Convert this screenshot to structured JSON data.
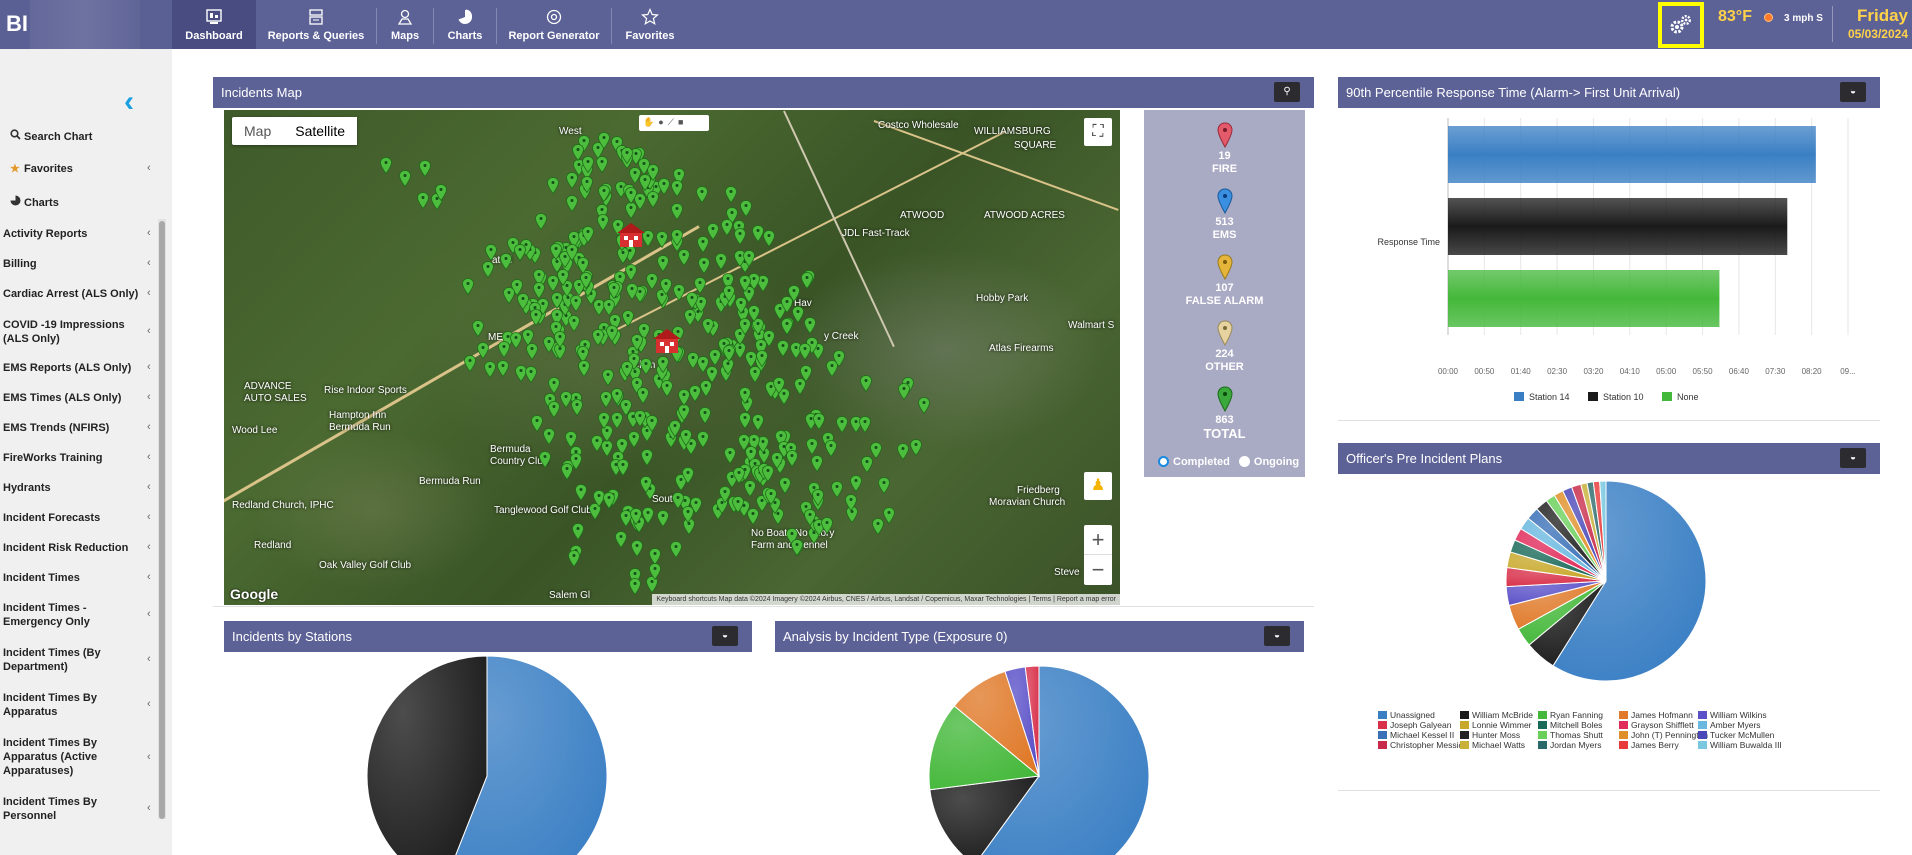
{
  "app": {
    "brand": "BI"
  },
  "nav": [
    {
      "label": "Dashboard",
      "icon": "dashboard-icon"
    },
    {
      "label": "Reports & Queries",
      "icon": "reports-icon"
    },
    {
      "label": "Maps",
      "icon": "maps-icon"
    },
    {
      "label": "Charts",
      "icon": "charts-icon"
    },
    {
      "label": "Report Generator",
      "icon": "report-generator-icon"
    },
    {
      "label": "Favorites",
      "icon": "star-icon"
    }
  ],
  "weather": {
    "temp": "83°F",
    "wind": "3 mph S",
    "day": "Friday",
    "date": "05/03/2024"
  },
  "sidebar": {
    "top": [
      {
        "label": "Search Chart",
        "icon": "search-icon"
      },
      {
        "label": "Favorites",
        "icon": "star-icon"
      },
      {
        "label": "Charts",
        "icon": "pie-icon"
      }
    ],
    "items": [
      "Activity Reports",
      "Billing",
      "Cardiac Arrest (ALS Only)",
      "COVID -19 Impressions (ALS Only)",
      "EMS Reports (ALS Only)",
      "EMS Times (ALS Only)",
      "EMS Trends (NFIRS)",
      "FireWorks Training",
      "Hydrants",
      "Incident Forecasts",
      "Incident Risk Reduction",
      "Incident Times",
      "Incident Times - Emergency Only",
      "Incident Times (By Department)",
      "Incident Times By Apparatus",
      "Incident Times By Apparatus (Active Apparatuses)",
      "Incident Times By Personnel"
    ]
  },
  "panels": {
    "map": "Incidents Map",
    "response": "90th Percentile Response Time (Alarm-> First Unit Arrival)",
    "preplans": "Officer's Pre Incident Plans",
    "stations": "Incidents by Stations",
    "types": "Analysis by Incident Type (Exposure 0)"
  },
  "map": {
    "type_map": "Map",
    "type_satellite": "Satellite",
    "google": "Google",
    "attribution": "Keyboard shortcuts   Map data ©2024 Imagery ©2024 Airbus, CNES / Airbus, Landsat / Copernicus, Maxar Technologies  |  Terms  |  Report a map error",
    "zoom_in": "+",
    "zoom_out": "−",
    "places": [
      "West",
      "Costco Wholesale",
      "WILLIAMSBURG",
      "SQUARE",
      "ATWOOD",
      "ATWOOD ACRES",
      "JDL Fast-Track",
      "Hobby Park",
      "Walmart S",
      "Atlas Firearms",
      "ME",
      "Clem",
      "Hav",
      "y Creek",
      "ADVANCE",
      "AUTO SALES",
      "Rise Indoor Sports",
      "Hampton Inn",
      "Bermuda Run",
      "Wood Lee",
      "Bermuda",
      "Country Club",
      "Bermuda Run",
      "Redland Church, IPHC",
      "Tanglewood Golf Club",
      "Redland",
      "Oak Valley Golf Club",
      "South",
      "No Boats No Glory",
      "Farm and Kennel",
      "Friedberg",
      "Moravian Church",
      "Steve",
      "Salem Gl",
      "at Pl"
    ]
  },
  "legend": {
    "items": [
      {
        "count": "19",
        "label": "FIRE",
        "color": "#e35a6a"
      },
      {
        "count": "513",
        "label": "EMS",
        "color": "#3a8fe0"
      },
      {
        "count": "107",
        "label": "FALSE ALARM",
        "color": "#e4b53a"
      },
      {
        "count": "224",
        "label": "OTHER",
        "color": "#e6d3a0"
      },
      {
        "count": "863",
        "label": "TOTAL",
        "color": "#3aa83a"
      }
    ],
    "completed": "Completed",
    "ongoing": "Ongoing"
  },
  "response_chart": {
    "category": "Response Time",
    "ticks": [
      "00:00",
      "00:50",
      "01:40",
      "02:30",
      "03:20",
      "04:10",
      "05:00",
      "05:50",
      "06:40",
      "07:30",
      "08:20",
      "09..."
    ],
    "series": [
      {
        "name": "Station 14",
        "value_seconds": 515,
        "color": "#3a7fc4"
      },
      {
        "name": "Station 10",
        "value_seconds": 475,
        "color": "#1a1a1a"
      },
      {
        "name": "None",
        "value_seconds": 380,
        "color": "#44b83a"
      }
    ],
    "xmax_seconds": 560
  },
  "preplans_chart": {
    "legend": [
      {
        "name": "Unassigned",
        "color": "#3a7fc4"
      },
      {
        "name": "William McBride",
        "color": "#1a1a1a"
      },
      {
        "name": "Ryan Fanning",
        "color": "#44b83a"
      },
      {
        "name": "James Hofmann",
        "color": "#e07a2a"
      },
      {
        "name": "William Wilkins",
        "color": "#5a50c8"
      },
      {
        "name": "Joseph Galyean",
        "color": "#d8304a"
      },
      {
        "name": "Lonnie Wimmer",
        "color": "#c8a82a"
      },
      {
        "name": "Mitchell Boles",
        "color": "#1a6a5a"
      },
      {
        "name": "Grayson Shifflett",
        "color": "#e02a5a"
      },
      {
        "name": "Amber Myers",
        "color": "#6ab8e0"
      },
      {
        "name": "Michael Kessel II",
        "color": "#3a70b8"
      },
      {
        "name": "Hunter Moss",
        "color": "#222222"
      },
      {
        "name": "Thomas Shutt",
        "color": "#6ad05a"
      },
      {
        "name": "John (T) Pennington",
        "color": "#e0902a"
      },
      {
        "name": "Tucker McMullen",
        "color": "#4a48b8"
      },
      {
        "name": "Christopher Messick",
        "color": "#c82a4a"
      },
      {
        "name": "Michael Watts",
        "color": "#c8b03a"
      },
      {
        "name": "Jordan Myers",
        "color": "#2a6a6a"
      },
      {
        "name": "James Berry",
        "color": "#e83a3a"
      },
      {
        "name": "William Buwalda III",
        "color": "#7ac8e0"
      }
    ],
    "values": [
      58,
      5,
      3,
      4,
      3,
      3,
      2.5,
      2,
      2,
      2,
      2,
      2,
      1.5,
      1.5,
      1.5,
      1.5,
      1,
      1,
      1,
      1
    ]
  },
  "stations_chart": {
    "values": [
      56,
      44
    ],
    "colors": [
      "#3a7fc4",
      "#1a1a1a"
    ]
  },
  "types_chart": {
    "values": [
      60,
      13,
      13,
      9,
      3,
      2
    ],
    "colors": [
      "#3a7fc4",
      "#1a1a1a",
      "#44b83a",
      "#e07a2a",
      "#5a50c8",
      "#d8304a"
    ]
  }
}
